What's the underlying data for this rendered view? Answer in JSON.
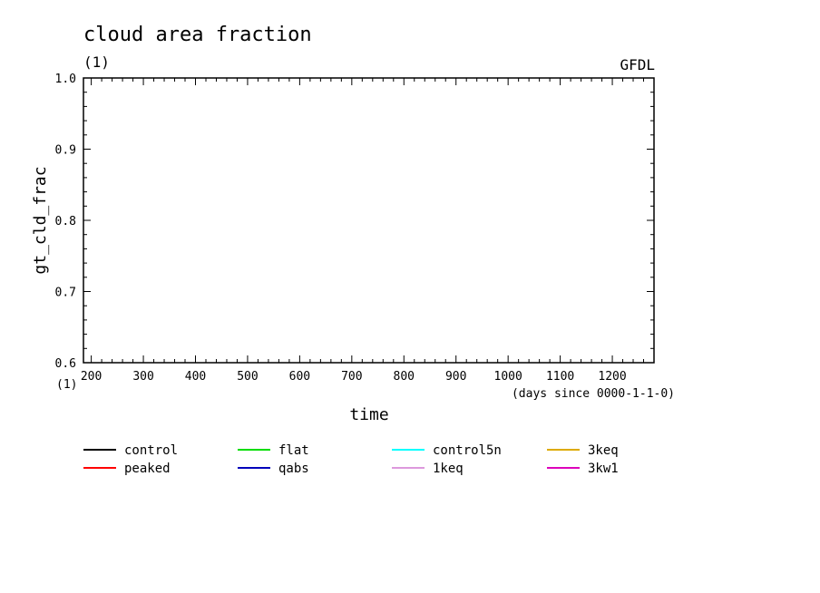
{
  "chart_data": {
    "type": "line",
    "title": "cloud area fraction",
    "units_label": "(1)",
    "source_label": "GFDL",
    "ylabel": "gt_cld_frac",
    "xlabel": "time",
    "x_units_note": "(days since 0000-1-1-0)",
    "x_axis_units_label": "(1)",
    "xlim": [
      185,
      1280
    ],
    "ylim": [
      0.6,
      1.0
    ],
    "xticks": [
      200,
      300,
      400,
      500,
      600,
      700,
      800,
      900,
      1000,
      1100,
      1200
    ],
    "yticks": [
      "0.6",
      "0.7",
      "0.8",
      "0.9",
      "1.0"
    ],
    "grid": false,
    "legend_position": "bottom",
    "series": [
      {
        "name": "control",
        "color": "#000000",
        "x": [],
        "y": []
      },
      {
        "name": "peaked",
        "color": "#ff0000",
        "x": [],
        "y": []
      },
      {
        "name": "flat",
        "color": "#00dd00",
        "x": [],
        "y": []
      },
      {
        "name": "qabs",
        "color": "#0000bb",
        "x": [],
        "y": []
      },
      {
        "name": "control5n",
        "color": "#00ffff",
        "x": [],
        "y": []
      },
      {
        "name": "1keq",
        "color": "#dd99dd",
        "x": [],
        "y": []
      },
      {
        "name": "3keq",
        "color": "#ddaa00",
        "x": [],
        "y": []
      },
      {
        "name": "3kw1",
        "color": "#dd00bb",
        "x": [],
        "y": []
      }
    ]
  }
}
